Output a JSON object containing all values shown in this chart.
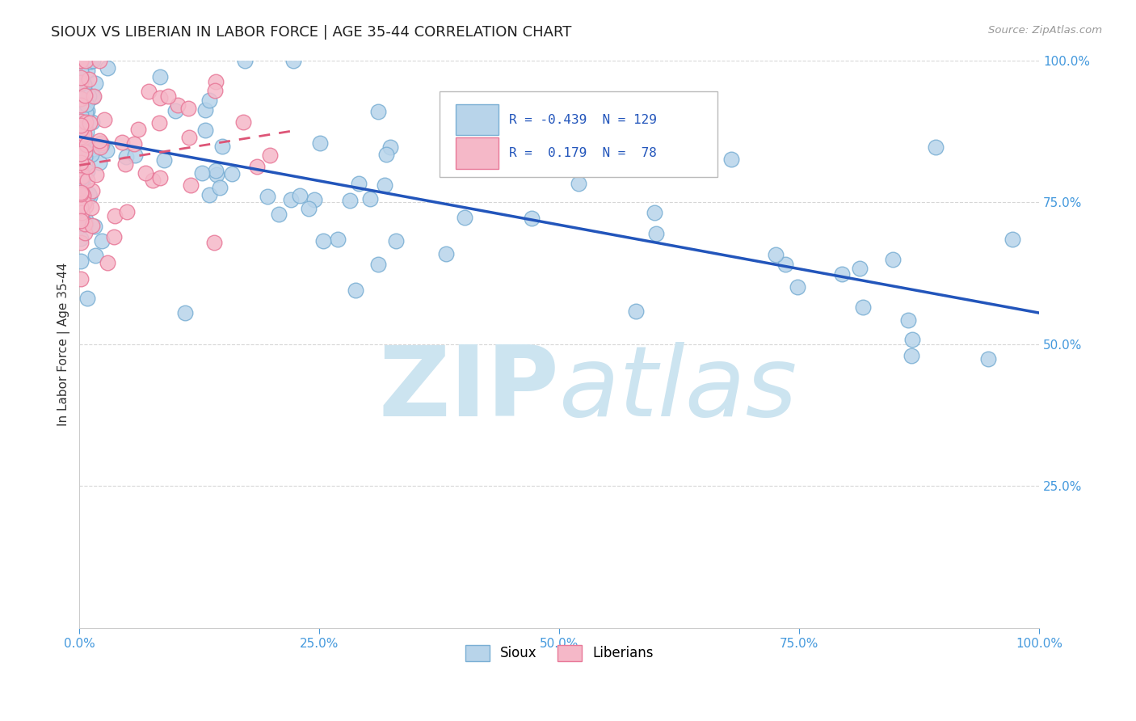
{
  "title": "SIOUX VS LIBERIAN IN LABOR FORCE | AGE 35-44 CORRELATION CHART",
  "source_text": "Source: ZipAtlas.com",
  "ylabel": "In Labor Force | Age 35-44",
  "xlim": [
    0,
    1.0
  ],
  "ylim": [
    0,
    1.0
  ],
  "sioux_R": -0.439,
  "sioux_N": 129,
  "liberian_R": 0.179,
  "liberian_N": 78,
  "sioux_color": "#b8d4ea",
  "sioux_edge_color": "#7aafd4",
  "liberian_color": "#f5b8c8",
  "liberian_edge_color": "#e87898",
  "sioux_trend_color": "#2255bb",
  "liberian_trend_color": "#dd5577",
  "background_color": "#ffffff",
  "watermark_color": "#cce4f0",
  "grid_color": "#cccccc",
  "legend_R_color": "#2255bb",
  "legend_N_color": "#333333",
  "tick_color": "#4499dd",
  "sioux_trend_start_x": 0.0,
  "sioux_trend_start_y": 0.865,
  "sioux_trend_end_x": 1.0,
  "sioux_trend_end_y": 0.555,
  "liberian_trend_start_x": 0.0,
  "liberian_trend_start_y": 0.815,
  "liberian_trend_end_x": 0.22,
  "liberian_trend_end_y": 0.875
}
